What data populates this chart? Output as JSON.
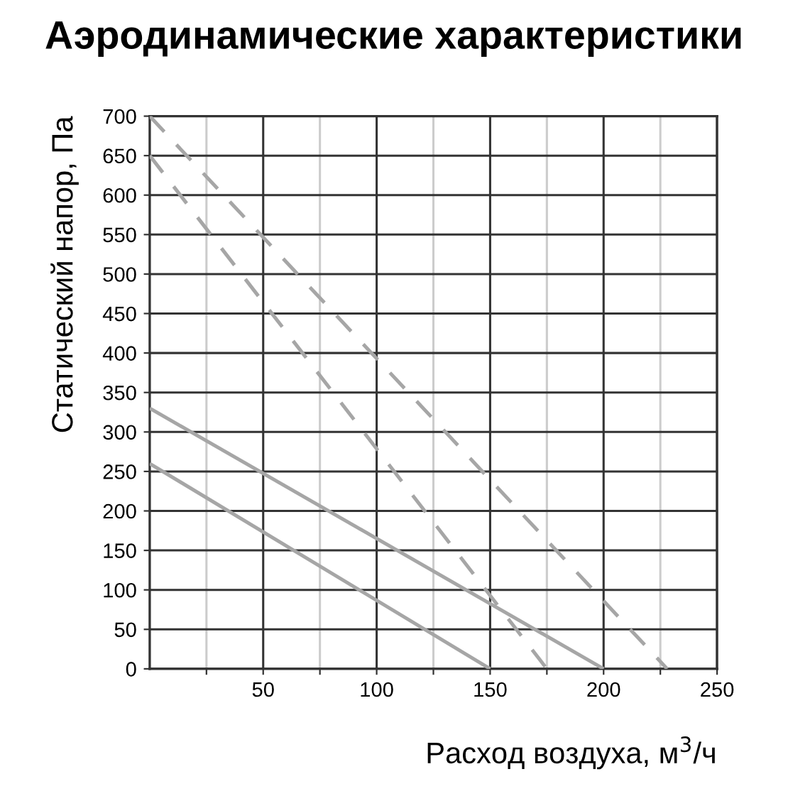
{
  "chart_data": {
    "type": "line",
    "title": "Аэродинамические характеристики",
    "xlabel": "Расход воздуха, м$^{3}$/ч",
    "ylabel": "Статический напор, Па",
    "xlim": [
      0,
      250
    ],
    "ylim": [
      0,
      700
    ],
    "xticks": [
      {
        "value": 25,
        "label": null
      },
      50,
      {
        "value": 75,
        "label": null
      },
      100,
      {
        "value": 125,
        "label": null
      },
      150,
      {
        "value": 175,
        "label": null
      },
      200,
      {
        "value": 225,
        "label": null
      },
      250
    ],
    "yticks": [
      0,
      50,
      100,
      150,
      200,
      250,
      300,
      350,
      400,
      450,
      500,
      550,
      600,
      650,
      700
    ],
    "grid": true,
    "marker": "none",
    "series": [
      {
        "color": "#a6a6a6",
        "line_style": "dashed",
        "x": [
          0,
          228
        ],
        "values": [
          700,
          0
        ]
      },
      {
        "color": "#a6a6a6",
        "line_style": "dashed",
        "x": [
          0,
          175
        ],
        "values": [
          650,
          0
        ]
      },
      {
        "color": "#a6a6a6",
        "line_style": "solid",
        "x": [
          0,
          200
        ],
        "values": [
          330,
          0
        ]
      },
      {
        "color": "#a6a6a6",
        "line_style": "solid",
        "x": [
          0,
          150
        ],
        "values": [
          260,
          0
        ]
      }
    ]
  }
}
